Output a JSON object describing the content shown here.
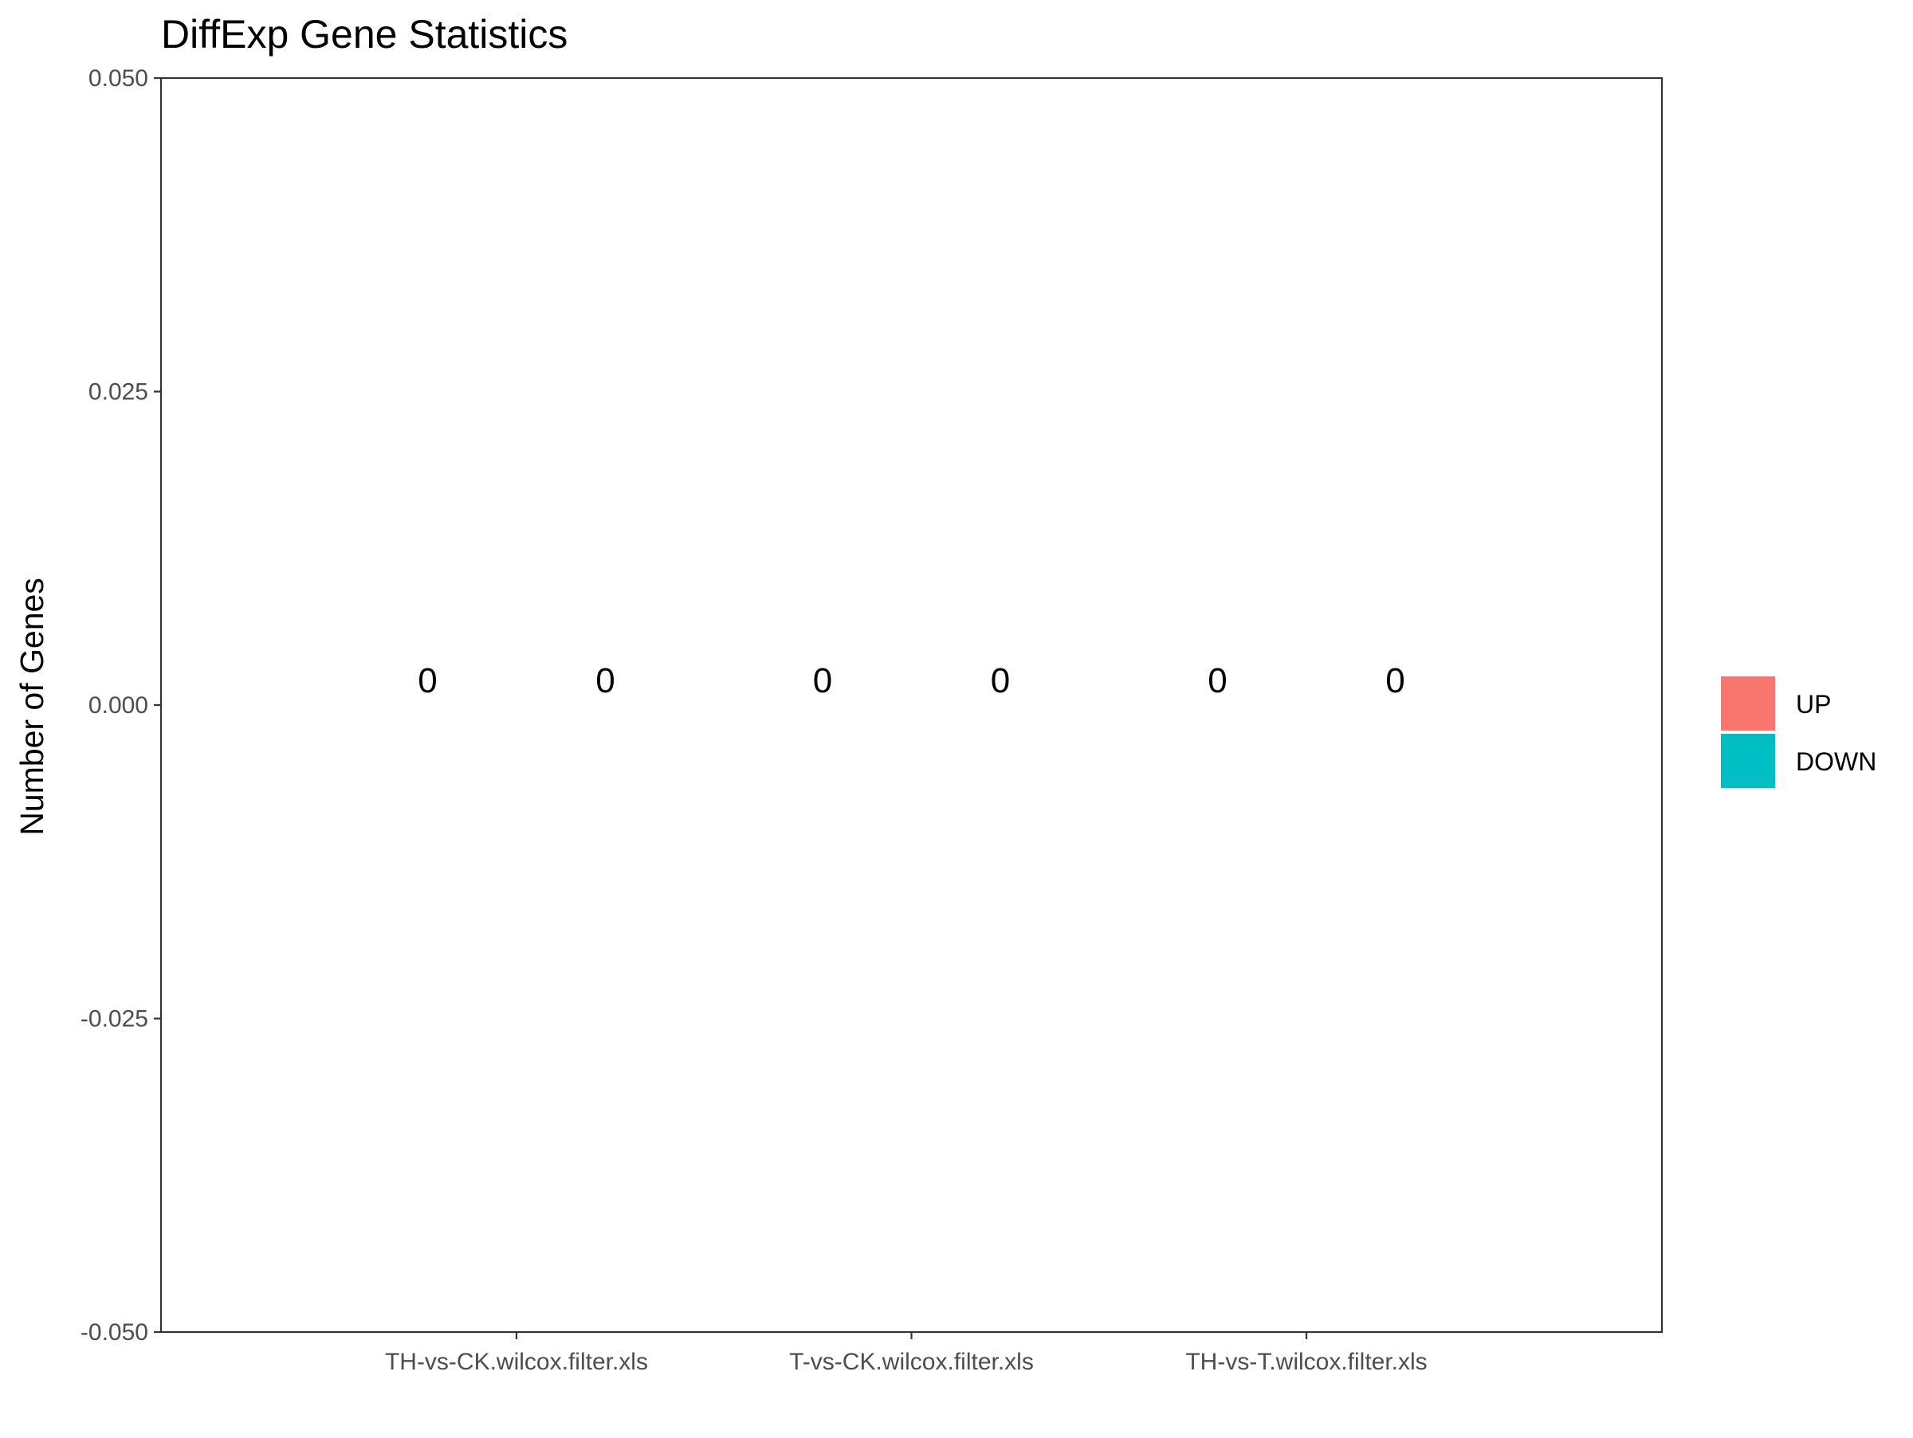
{
  "chart_data": {
    "type": "bar",
    "title": "DiffExp Gene Statistics",
    "xlabel": "",
    "ylabel": "Number of Genes",
    "categories": [
      "TH-vs-CK.wilcox.filter.xls",
      "T-vs-CK.wilcox.filter.xls",
      "TH-vs-T.wilcox.filter.xls"
    ],
    "series": [
      {
        "name": "UP",
        "color": "#F8766D",
        "values": [
          0,
          0,
          0
        ]
      },
      {
        "name": "DOWN",
        "color": "#00BFC4",
        "values": [
          0,
          0,
          0
        ]
      }
    ],
    "data_labels": [
      [
        "0",
        "0"
      ],
      [
        "0",
        "0"
      ],
      [
        "0",
        "0"
      ]
    ],
    "ylim": [
      -0.05,
      0.05
    ],
    "yticks": [
      "0.050",
      "0.025",
      "0.000",
      "-0.025",
      "-0.050"
    ],
    "ytick_values": [
      0.05,
      0.025,
      0,
      -0.025,
      -0.05
    ],
    "grid": false,
    "legend_position": "right"
  }
}
